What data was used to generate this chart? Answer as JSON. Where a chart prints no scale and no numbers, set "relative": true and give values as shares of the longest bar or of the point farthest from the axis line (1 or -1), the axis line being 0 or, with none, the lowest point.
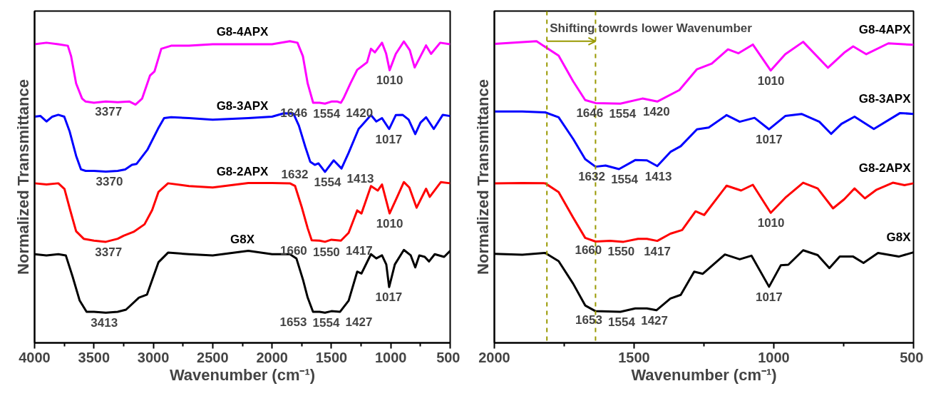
{
  "chart_data": [
    {
      "type": "line",
      "relative": true,
      "xlabel": "Wavenumber (cm⁻¹)",
      "ylabel": "Normalized Transmittance",
      "xlim": [
        4000,
        500
      ],
      "xticks": [
        4000,
        3500,
        3000,
        2500,
        2000,
        1500,
        1000,
        500
      ],
      "tick_labels": "x",
      "series": [
        {
          "name": "G8-4APX",
          "color": "#ff00ff",
          "x": [
            4000,
            3900,
            3800,
            3720,
            3692,
            3650,
            3600,
            3570,
            3500,
            3400,
            3300,
            3200,
            3150,
            3094,
            3028,
            2990,
            2933,
            2850,
            2700,
            2500,
            2200,
            2000,
            1850,
            1786,
            1740,
            1700,
            1654,
            1600,
            1554,
            1500,
            1450,
            1420,
            1399,
            1340,
            1283,
            1200,
            1167,
            1134,
            1074,
            1040,
            1010,
            985,
            958,
            890,
            840,
            799,
            750,
            703,
            661,
            584,
            500
          ],
          "values": [
            0.99,
            0.995,
            0.99,
            0.985,
            0.95,
            0.86,
            0.81,
            0.8,
            0.796,
            0.8,
            0.798,
            0.8,
            0.79,
            0.81,
            0.886,
            0.9,
            0.975,
            0.985,
            0.985,
            0.99,
            0.99,
            0.99,
            1.0,
            0.995,
            0.95,
            0.86,
            0.796,
            0.796,
            0.793,
            0.8,
            0.8,
            0.796,
            0.81,
            0.86,
            0.905,
            0.93,
            0.975,
            0.963,
            0.995,
            0.96,
            0.904,
            0.93,
            0.958,
            0.999,
            0.97,
            0.913,
            0.95,
            0.986,
            0.958,
            0.995,
            0.99
          ]
        },
        {
          "name": "G8-3APX",
          "color": "#0000ff",
          "x": [
            4000,
            3950,
            3900,
            3850,
            3800,
            3750,
            3704,
            3650,
            3609,
            3570,
            3500,
            3400,
            3300,
            3237,
            3180,
            3142,
            3050,
            2960,
            2909,
            2850,
            2700,
            2500,
            2200,
            2000,
            1900,
            1820,
            1774,
            1720,
            1678,
            1640,
            1609,
            1554,
            1481,
            1415,
            1355,
            1271,
            1167,
            1122,
            1074,
            1014,
            958,
            901,
            850,
            794,
            750,
            703,
            638,
            562,
            500
          ],
          "values": [
            0.75,
            0.752,
            0.734,
            0.75,
            0.756,
            0.75,
            0.7,
            0.62,
            0.575,
            0.57,
            0.57,
            0.568,
            0.57,
            0.575,
            0.59,
            0.593,
            0.64,
            0.71,
            0.745,
            0.748,
            0.745,
            0.74,
            0.745,
            0.75,
            0.761,
            0.76,
            0.72,
            0.65,
            0.6,
            0.59,
            0.595,
            0.567,
            0.605,
            0.578,
            0.63,
            0.709,
            0.755,
            0.734,
            0.745,
            0.709,
            0.755,
            0.756,
            0.74,
            0.692,
            0.73,
            0.748,
            0.709,
            0.756,
            0.752
          ]
        },
        {
          "name": "G8-2APX",
          "color": "#ff0000",
          "x": [
            4000,
            3900,
            3800,
            3748,
            3700,
            3650,
            3586,
            3500,
            3400,
            3300,
            3250,
            3166,
            3074,
            3010,
            2957,
            2876,
            2700,
            2500,
            2200,
            2000,
            1850,
            1806,
            1750,
            1700,
            1666,
            1600,
            1554,
            1500,
            1420,
            1355,
            1283,
            1247,
            1167,
            1110,
            1074,
            1010,
            946,
            890,
            844,
            783,
            703,
            672,
            578,
            500
          ],
          "values": [
            0.529,
            0.525,
            0.529,
            0.51,
            0.44,
            0.37,
            0.345,
            0.339,
            0.335,
            0.345,
            0.355,
            0.368,
            0.393,
            0.44,
            0.5,
            0.529,
            0.52,
            0.515,
            0.53,
            0.53,
            0.529,
            0.52,
            0.45,
            0.38,
            0.34,
            0.339,
            0.335,
            0.342,
            0.339,
            0.365,
            0.439,
            0.429,
            0.52,
            0.505,
            0.525,
            0.429,
            0.484,
            0.533,
            0.515,
            0.448,
            0.511,
            0.484,
            0.533,
            0.529
          ]
        },
        {
          "name": "G8X",
          "color": "#000000",
          "x": [
            4000,
            3900,
            3800,
            3737,
            3680,
            3620,
            3562,
            3500,
            3400,
            3300,
            3230,
            3121,
            3053,
            2957,
            2876,
            2700,
            2500,
            2200,
            2000,
            1850,
            1795,
            1740,
            1700,
            1655,
            1600,
            1554,
            1500,
            1427,
            1355,
            1283,
            1247,
            1167,
            1122,
            1074,
            1038,
            1014,
            966,
            890,
            832,
            794,
            760,
            714,
            678,
            630,
            551,
            500
          ],
          "values": [
            0.294,
            0.29,
            0.294,
            0.29,
            0.22,
            0.14,
            0.103,
            0.103,
            0.1,
            0.103,
            0.11,
            0.15,
            0.16,
            0.267,
            0.299,
            0.294,
            0.29,
            0.305,
            0.294,
            0.294,
            0.28,
            0.21,
            0.15,
            0.103,
            0.103,
            0.1,
            0.105,
            0.103,
            0.14,
            0.236,
            0.23,
            0.294,
            0.28,
            0.29,
            0.26,
            0.185,
            0.26,
            0.308,
            0.29,
            0.25,
            0.29,
            0.285,
            0.27,
            0.294,
            0.285,
            0.305
          ]
        }
      ],
      "annotations": [
        {
          "text": "3377",
          "x": 3377,
          "y": 0.8
        },
        {
          "text": "1646",
          "x": 1646,
          "y": 0.796
        },
        {
          "text": "1554",
          "x": 1554,
          "y": 0.793
        },
        {
          "text": "1420",
          "x": 1420,
          "y": 0.796
        },
        {
          "text": "1010",
          "x": 1010,
          "y": 0.904
        },
        {
          "text": "3370",
          "x": 3370,
          "y": 0.568
        },
        {
          "text": "1632",
          "x": 1632,
          "y": 0.592
        },
        {
          "text": "1554",
          "x": 1554,
          "y": 0.567
        },
        {
          "text": "1413",
          "x": 1413,
          "y": 0.578
        },
        {
          "text": "1017",
          "x": 1017,
          "y": 0.709
        },
        {
          "text": "3377",
          "x": 3377,
          "y": 0.335
        },
        {
          "text": "1660",
          "x": 1660,
          "y": 0.34
        },
        {
          "text": "1550",
          "x": 1550,
          "y": 0.335
        },
        {
          "text": "1417",
          "x": 1417,
          "y": 0.339
        },
        {
          "text": "1010",
          "x": 1010,
          "y": 0.429
        },
        {
          "text": "3413",
          "x": 3413,
          "y": 0.1
        },
        {
          "text": "1653",
          "x": 1653,
          "y": 0.103
        },
        {
          "text": "1554",
          "x": 1554,
          "y": 0.1
        },
        {
          "text": "1427",
          "x": 1427,
          "y": 0.103
        },
        {
          "text": "1017",
          "x": 1017,
          "y": 0.185
        }
      ]
    },
    {
      "type": "line",
      "relative": true,
      "xlabel": "Wavenumber (cm⁻¹)",
      "ylabel": "Normalized Transmittance",
      "xlim": [
        2000,
        500
      ],
      "xticks": [
        2000,
        1500,
        1000,
        500
      ],
      "tick_labels": "x",
      "series": [
        {
          "name": "G8-4APX",
          "color": "#ff00ff",
          "x": [
            2000,
            1849,
            1770,
            1718,
            1675,
            1638,
            1549,
            1470,
            1417,
            1338,
            1275,
            1222,
            1164,
            1127,
            1075,
            1011,
            959,
            895,
            806,
            748,
            716,
            669,
            590,
            500
          ],
          "values": [
            0.991,
            1.0,
            0.952,
            0.867,
            0.805,
            0.795,
            0.793,
            0.81,
            0.8,
            0.838,
            0.907,
            0.926,
            0.973,
            0.96,
            0.989,
            0.903,
            0.957,
            0.998,
            0.912,
            0.962,
            0.983,
            0.957,
            0.993,
            0.988
          ]
        },
        {
          "name": "G8-3APX",
          "color": "#0000ff",
          "x": [
            2000,
            1900,
            1818,
            1770,
            1718,
            1675,
            1638,
            1602,
            1554,
            1496,
            1454,
            1417,
            1370,
            1333,
            1275,
            1233,
            1169,
            1122,
            1069,
            1017,
            959,
            901,
            837,
            795,
            758,
            711,
            642,
            548,
            500
          ],
          "values": [
            0.767,
            0.767,
            0.764,
            0.748,
            0.676,
            0.609,
            0.584,
            0.588,
            0.576,
            0.606,
            0.605,
            0.586,
            0.633,
            0.652,
            0.708,
            0.714,
            0.755,
            0.733,
            0.746,
            0.708,
            0.752,
            0.759,
            0.733,
            0.693,
            0.726,
            0.75,
            0.709,
            0.762,
            0.759
          ]
        },
        {
          "name": "G8-2APX",
          "color": "#ff0000",
          "x": [
            2000,
            1900,
            1818,
            1770,
            1718,
            1675,
            1638,
            1586,
            1538,
            1486,
            1454,
            1417,
            1370,
            1328,
            1280,
            1249,
            1169,
            1117,
            1075,
            1011,
            959,
            895,
            843,
            788,
            748,
            711,
            674,
            632,
            574,
            532,
            500
          ],
          "values": [
            0.529,
            0.53,
            0.529,
            0.5,
            0.415,
            0.348,
            0.336,
            0.338,
            0.335,
            0.345,
            0.345,
            0.338,
            0.362,
            0.374,
            0.436,
            0.424,
            0.521,
            0.505,
            0.524,
            0.431,
            0.481,
            0.531,
            0.512,
            0.446,
            0.476,
            0.512,
            0.479,
            0.508,
            0.531,
            0.523,
            0.529
          ]
        },
        {
          "name": "G8X",
          "color": "#000000",
          "x": [
            2000,
            1900,
            1818,
            1770,
            1718,
            1675,
            1638,
            1549,
            1496,
            1454,
            1420,
            1370,
            1333,
            1285,
            1254,
            1175,
            1122,
            1080,
            1017,
            975,
            948,
            895,
            843,
            801,
            764,
            716,
            679,
            627,
            553,
            500
          ],
          "values": [
            0.295,
            0.292,
            0.298,
            0.271,
            0.196,
            0.124,
            0.105,
            0.103,
            0.114,
            0.114,
            0.108,
            0.147,
            0.159,
            0.236,
            0.229,
            0.293,
            0.277,
            0.289,
            0.186,
            0.257,
            0.259,
            0.307,
            0.291,
            0.248,
            0.286,
            0.286,
            0.265,
            0.298,
            0.286,
            0.3
          ]
        }
      ],
      "ref_lines": [
        {
          "axis": "x",
          "value": 1812,
          "color": "#999900",
          "line_style": "dashed"
        },
        {
          "axis": "x",
          "value": 1638,
          "color": "#999900",
          "line_style": "dashed"
        }
      ],
      "annotations": [
        "Shifting towrds lower Wavenumber",
        {
          "text": "1646",
          "x": 1646,
          "y": 0.795
        },
        {
          "text": "1554",
          "x": 1554,
          "y": 0.793
        },
        {
          "text": "1420",
          "x": 1420,
          "y": 0.8
        },
        {
          "text": "1010",
          "x": 1010,
          "y": 0.903
        },
        {
          "text": "1017",
          "x": 1017,
          "y": 0.708
        },
        {
          "text": "1632",
          "x": 1632,
          "y": 0.585
        },
        {
          "text": "1554",
          "x": 1554,
          "y": 0.576
        },
        {
          "text": "1413",
          "x": 1413,
          "y": 0.586
        },
        {
          "text": "1010",
          "x": 1010,
          "y": 0.431
        },
        {
          "text": "1660",
          "x": 1660,
          "y": 0.343
        },
        {
          "text": "1550",
          "x": 1550,
          "y": 0.336
        },
        {
          "text": "1417",
          "x": 1417,
          "y": 0.338
        },
        {
          "text": "1017",
          "x": 1017,
          "y": 0.186
        },
        {
          "text": "1653",
          "x": 1653,
          "y": 0.11
        },
        {
          "text": "1554",
          "x": 1554,
          "y": 0.103
        },
        {
          "text": "1427",
          "x": 1427,
          "y": 0.108
        }
      ]
    }
  ]
}
